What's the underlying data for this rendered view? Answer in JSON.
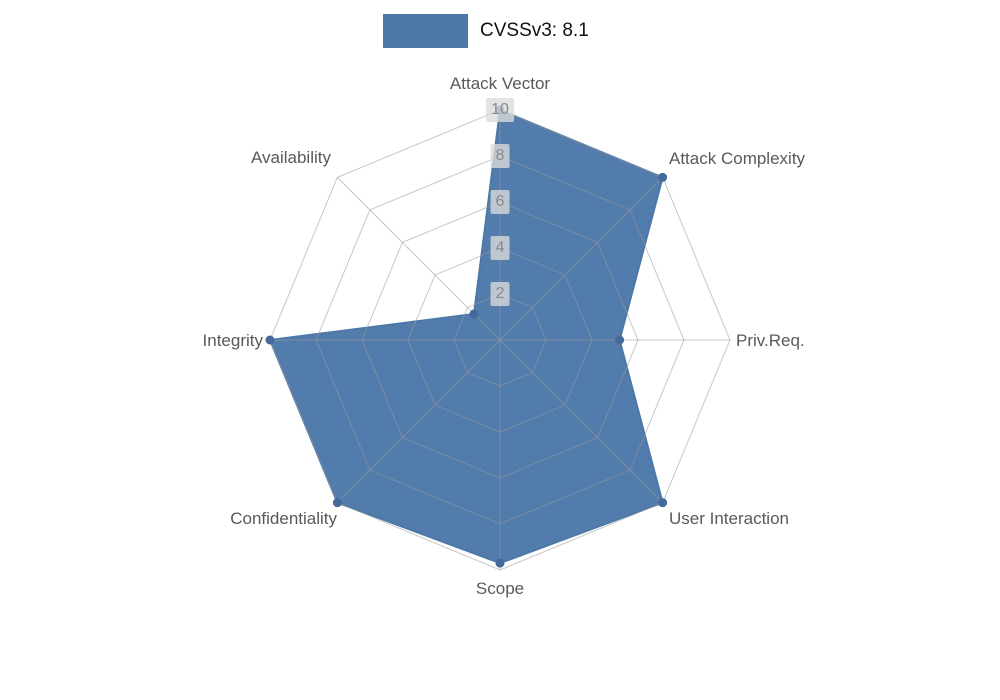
{
  "legend": {
    "label": "CVSSv3: 8.1"
  },
  "chart_data": {
    "type": "radar",
    "title": "CVSSv3: 8.1",
    "categories": [
      "Attack Vector",
      "Attack Complexity",
      "Priv.Req.",
      "User Interaction",
      "Scope",
      "Confidentiality",
      "Integrity",
      "Availability"
    ],
    "series": [
      {
        "name": "CVSSv3: 8.1",
        "values": [
          10,
          10,
          5.2,
          10,
          9.7,
          10,
          10,
          1.6
        ]
      }
    ],
    "axis_range": [
      0,
      10
    ],
    "max": 10,
    "tick_interval": 2,
    "tick_labels": [
      "2",
      "4",
      "6",
      "8",
      "10"
    ],
    "grid": "spider-web",
    "grid_rings": 5,
    "legend_position": "top-center",
    "series_color": "#4c78a8",
    "point_color": "#45699b",
    "grid_color": "#9a9a9a",
    "label_color": "#595959"
  }
}
